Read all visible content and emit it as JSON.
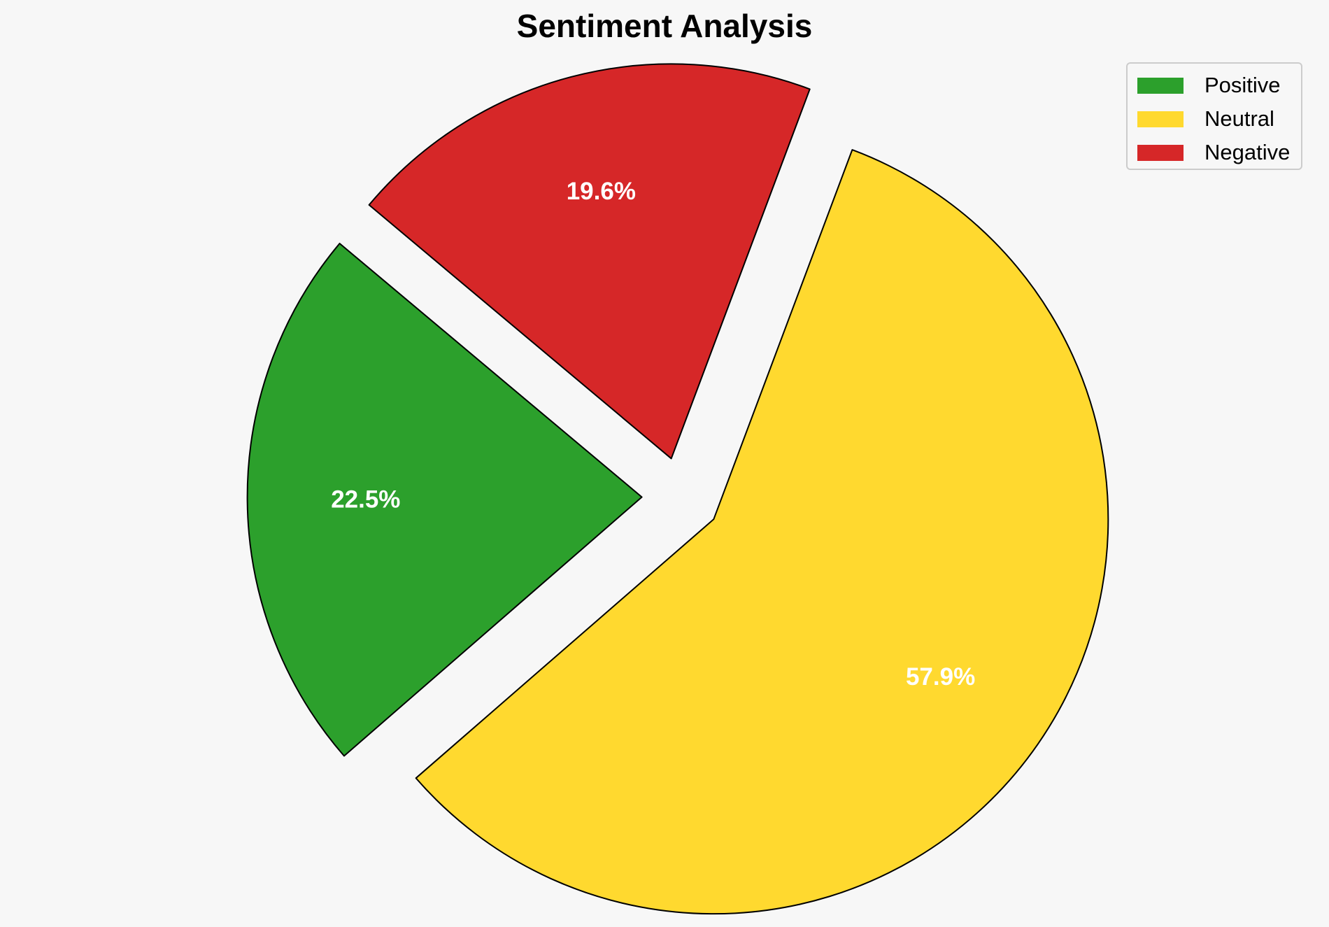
{
  "chart_data": {
    "type": "pie",
    "title": "Sentiment Analysis",
    "slices": [
      {
        "label": "Positive",
        "value": 22.5,
        "value_label": "22.5%",
        "color": "#2ca02c"
      },
      {
        "label": "Neutral",
        "value": 57.9,
        "value_label": "57.9%",
        "color": "#ffd92f"
      },
      {
        "label": "Negative",
        "value": 19.6,
        "value_label": "19.6%",
        "color": "#d62728"
      }
    ],
    "legend_position": "top-right",
    "exploded": true
  }
}
